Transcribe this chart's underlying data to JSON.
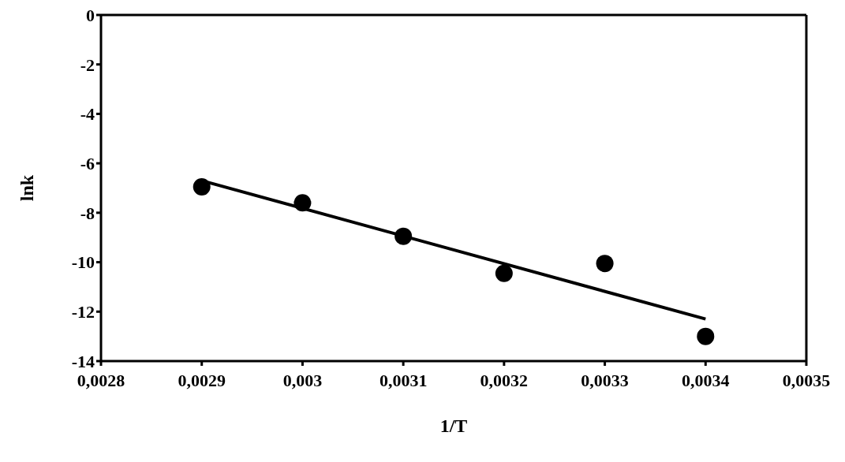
{
  "chart_data": {
    "type": "scatter",
    "xlabel": "1/T",
    "ylabel": "lnk",
    "series": [
      {
        "color": "#000000",
        "x": [
          0.0029,
          0.003,
          0.0031,
          0.0032,
          0.0033,
          0.0034
        ],
        "values": [
          -6.95,
          -7.6,
          -8.95,
          -10.45,
          -10.05,
          -13.0
        ],
        "marker": "circle"
      },
      {
        "type": "line",
        "color": "#000000",
        "x": [
          0.0029,
          0.0034
        ],
        "values": [
          -6.7,
          -12.3
        ],
        "marker": "none"
      }
    ],
    "xlim": [
      0.0028,
      0.0035
    ],
    "xticks": [
      {
        "value": 0.0028,
        "label": "0,0028"
      },
      {
        "value": 0.0029,
        "label": "0,0029"
      },
      {
        "value": 0.003,
        "label": "0,003"
      },
      {
        "value": 0.0031,
        "label": "0,0031"
      },
      {
        "value": 0.0032,
        "label": "0,0032"
      },
      {
        "value": 0.0033,
        "label": "0,0033"
      },
      {
        "value": 0.0034,
        "label": "0,0034"
      },
      {
        "value": 0.0035,
        "label": "0,0035"
      }
    ],
    "ylim": [
      -14,
      0
    ],
    "yticks": [
      -14,
      -12,
      -10,
      -8,
      -6,
      -4,
      -2,
      0
    ]
  }
}
